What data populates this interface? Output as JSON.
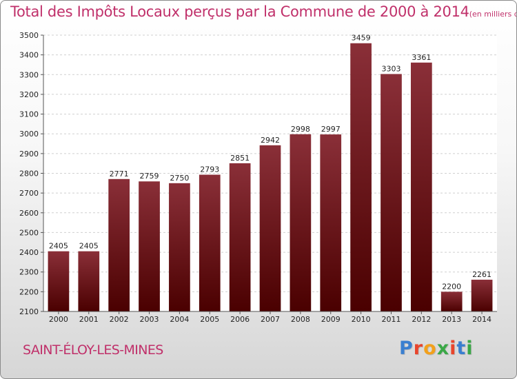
{
  "title": "Total des Impôts Locaux perçus par la Commune de 2000 à 2014",
  "subtitle": "(en milliers d'€)",
  "commune": "SAINT-ÉLOY-LES-MINES",
  "brand": {
    "letters": [
      "P",
      "r",
      "o",
      "x",
      "i",
      "t",
      "i"
    ],
    "colors": [
      "#3a7fd0",
      "#e8452c",
      "#f2a01c",
      "#3aa847",
      "#e8452c",
      "#3a7fd0",
      "#3aa847"
    ]
  },
  "colors": {
    "accent": "#c0306a",
    "bar_top": "#8a2f38",
    "bar_bottom": "#4a0000"
  },
  "chart_data": {
    "type": "bar",
    "title": "Total des Impôts Locaux perçus par la Commune de 2000 à 2014",
    "subtitle": "(en milliers d'€)",
    "categories": [
      "2000",
      "2001",
      "2002",
      "2003",
      "2004",
      "2005",
      "2006",
      "2007",
      "2008",
      "2009",
      "2010",
      "2011",
      "2012",
      "2013",
      "2014"
    ],
    "values": [
      2405,
      2405,
      2771,
      2759,
      2750,
      2793,
      2851,
      2942,
      2998,
      2997,
      3459,
      3303,
      3361,
      2200,
      2261
    ],
    "ylim": [
      2100,
      3500
    ],
    "yticks": [
      2100,
      2200,
      2300,
      2400,
      2500,
      2600,
      2700,
      2800,
      2900,
      3000,
      3100,
      3200,
      3300,
      3400,
      3500
    ],
    "grid": true,
    "xlabel": "",
    "ylabel": ""
  }
}
